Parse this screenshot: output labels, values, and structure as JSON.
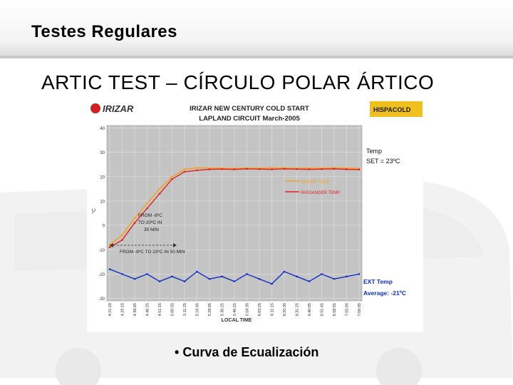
{
  "slide": {
    "title": "Testes Regulares",
    "heading": "ARTIC TEST – CÍRCULO POLAR ÁRTICO",
    "bullet": "Curva de Ecualización",
    "bullet_marker": "•"
  },
  "logos": {
    "left": "IRIZAR",
    "right": "HISPACOLD",
    "left_color": "#cc2222",
    "right_bg": "#f0c020"
  },
  "chart_data": {
    "type": "line",
    "title": "IRIZAR NEW CENTURY COLD START",
    "subtitle": "LAPLAND CIRCUIT March-2005",
    "xlabel": "LOCAL TIME",
    "ylabel": "°C",
    "ylim": [
      -31,
      41
    ],
    "yticks": [
      -30,
      -20,
      -10,
      0,
      10,
      20,
      30,
      40
    ],
    "ytick_labels": [
      "-30",
      "-20",
      "-10",
      "0",
      "10",
      "20",
      "30",
      "40"
    ],
    "categories": [
      "4:21:20",
      "4:29:15",
      "4:38:05",
      "4:46:25",
      "4:51:15",
      "5:00:55",
      "5:11:25",
      "5:19:45",
      "5:28:05",
      "5:36:25",
      "5:46:15",
      "5:54:35",
      "6:03:25",
      "6:11:15",
      "6:20:35",
      "6:31:25",
      "6:40:05",
      "6:51:45",
      "6:58:55",
      "7:05:05",
      "7:08:05"
    ],
    "grid": true,
    "legend": {
      "position": "center-right",
      "entries": [
        "DRIVER TEMP",
        "PASSANGER TEMP"
      ]
    },
    "series": [
      {
        "name": "DRIVER TEMP",
        "color": "#f4a020",
        "values": [
          -8,
          -4,
          3,
          9,
          15,
          20,
          23,
          23.6,
          23.5,
          23.4,
          23.3,
          23.5,
          23.4,
          23.6,
          23.5,
          23.4,
          23.5,
          23.4,
          23.6,
          23.5,
          23.3
        ]
      },
      {
        "name": "PASSANGER TEMP",
        "color": "#e02020",
        "values": [
          -9,
          -6,
          1,
          7,
          13,
          19,
          22,
          22.6,
          23,
          23.1,
          23,
          23.2,
          23.1,
          23,
          23.2,
          23.1,
          23,
          23.1,
          23.2,
          23,
          22.9
        ]
      },
      {
        "name": "EXT Temp",
        "color": "#1030c0",
        "values": [
          -18,
          -20,
          -22,
          -20,
          -23,
          -21,
          -23,
          -19,
          -22,
          -21,
          -23,
          -20,
          -22,
          -24,
          -19,
          -21,
          -23,
          -20,
          -22,
          -21,
          -20
        ]
      }
    ],
    "annotations": [
      "Temp",
      "SET = 23ºC",
      "FROM -8ºC",
      "TO 20ºC IN",
      "35 MIN",
      "FROM -8ºC TO 23ºC IN 50 MIN",
      "EXT Temp",
      "Average: -21ºC"
    ]
  }
}
